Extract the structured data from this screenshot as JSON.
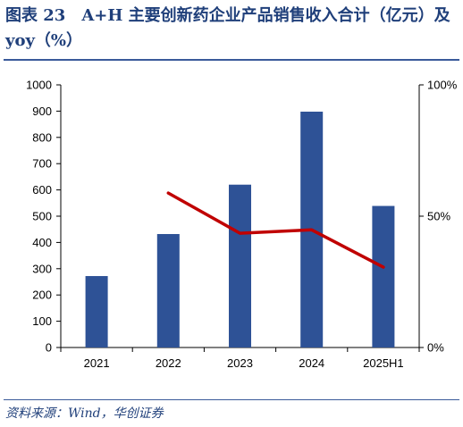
{
  "title": "图表 23　A+H 主要创新药企业产品销售收入合计（亿元）及 yoy（%）",
  "source": "资料来源：Wind，华创证券",
  "chart_data": {
    "type": "bar",
    "categories": [
      "2021",
      "2022",
      "2023",
      "2024",
      "2025H1"
    ],
    "series": [
      {
        "type": "bar",
        "axis": "left",
        "color": "#2e5296",
        "values": [
          272,
          432,
          620,
          898,
          539
        ]
      },
      {
        "type": "line",
        "axis": "right",
        "color": "#c00000",
        "values": [
          null,
          58.8,
          43.5,
          44.8,
          30.6
        ]
      }
    ],
    "y_left": {
      "min": 0,
      "max": 1000,
      "step": 100,
      "ticks": [
        "0",
        "100",
        "200",
        "300",
        "400",
        "500",
        "600",
        "700",
        "800",
        "900",
        "1000"
      ]
    },
    "y_right": {
      "min": 0,
      "max": 100,
      "ticks": [
        {
          "value": 0,
          "label": "0%"
        },
        {
          "value": 50,
          "label": "50%"
        },
        {
          "value": 100,
          "label": "100%"
        }
      ]
    },
    "grid": false,
    "legend": false
  }
}
